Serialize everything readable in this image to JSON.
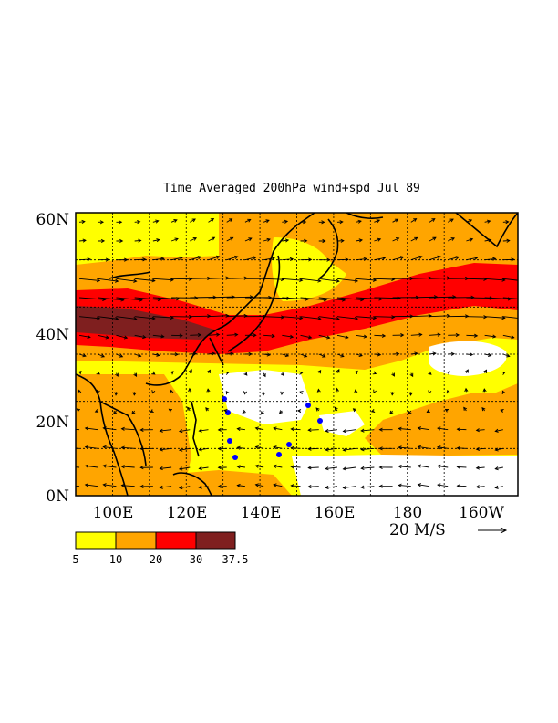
{
  "title": "Time Averaged 200hPa wind+spd  Jul 89",
  "colors": {
    "background": "#ffffff",
    "frame": "#000000",
    "coast": "#000000",
    "grid": "#000000",
    "low_marker": "#0000ff"
  },
  "map": {
    "lon_range": [
      90,
      210
    ],
    "lat_range": [
      0,
      60
    ],
    "x_ticks": [
      "100E",
      "120E",
      "140E",
      "160E",
      "180",
      "160W"
    ],
    "x_tick_values": [
      100,
      120,
      140,
      160,
      180,
      200
    ],
    "y_ticks": [
      "0N",
      "20N",
      "40N",
      "60N"
    ],
    "y_tick_values": [
      0,
      20,
      40,
      60
    ],
    "grid_lines": "dotted"
  },
  "vector_key": {
    "label": "20 M/S",
    "speed": 20
  },
  "colorbar": {
    "labels": [
      "5",
      "10",
      "20",
      "30",
      "37.5"
    ],
    "colors": [
      "#ffff00",
      "#ffa500",
      "#ff0000",
      "#7f1f1f"
    ]
  },
  "speed_field": {
    "levels": [
      5,
      10,
      20,
      30
    ],
    "colors": [
      "#ffff00",
      "#ffa500",
      "#ff0000",
      "#7f1f1f"
    ]
  }
}
